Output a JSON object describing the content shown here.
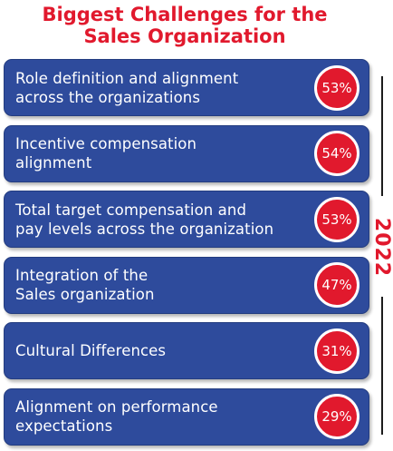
{
  "title": {
    "line1": "Biggest Challenges for the",
    "line2": "Sales Organization"
  },
  "year": "2022",
  "colors": {
    "title": "#e1192d",
    "row": "#2e4b9c",
    "badge": "#e1192d"
  },
  "chart_data": {
    "type": "bar",
    "title": "Biggest Challenges for the Sales Organization",
    "year": "2022",
    "categories": [
      "Role definition and alignment across the organizations",
      "Incentive compensation alignment",
      "Total target compensation and pay levels across the organization",
      "Integration of the Sales organization",
      "Cultural Differences",
      "Alignment on performance expectations"
    ],
    "values": [
      53,
      54,
      53,
      47,
      31,
      29
    ],
    "unit": "%",
    "rows": [
      {
        "lines": [
          "Role definition and alignment",
          "across the organizations"
        ],
        "value": 53,
        "value_label": "53%"
      },
      {
        "lines": [
          "Incentive compensation",
          "alignment"
        ],
        "value": 54,
        "value_label": "54%"
      },
      {
        "lines": [
          "Total target compensation and",
          "pay levels across the organization"
        ],
        "value": 53,
        "value_label": "53%"
      },
      {
        "lines": [
          "Integration of the",
          "Sales organization"
        ],
        "value": 47,
        "value_label": "47%"
      },
      {
        "lines": [
          "Cultural Differences"
        ],
        "value": 31,
        "value_label": "31%"
      },
      {
        "lines": [
          "Alignment on performance",
          "expectations"
        ],
        "value": 29,
        "value_label": "29%"
      }
    ]
  }
}
